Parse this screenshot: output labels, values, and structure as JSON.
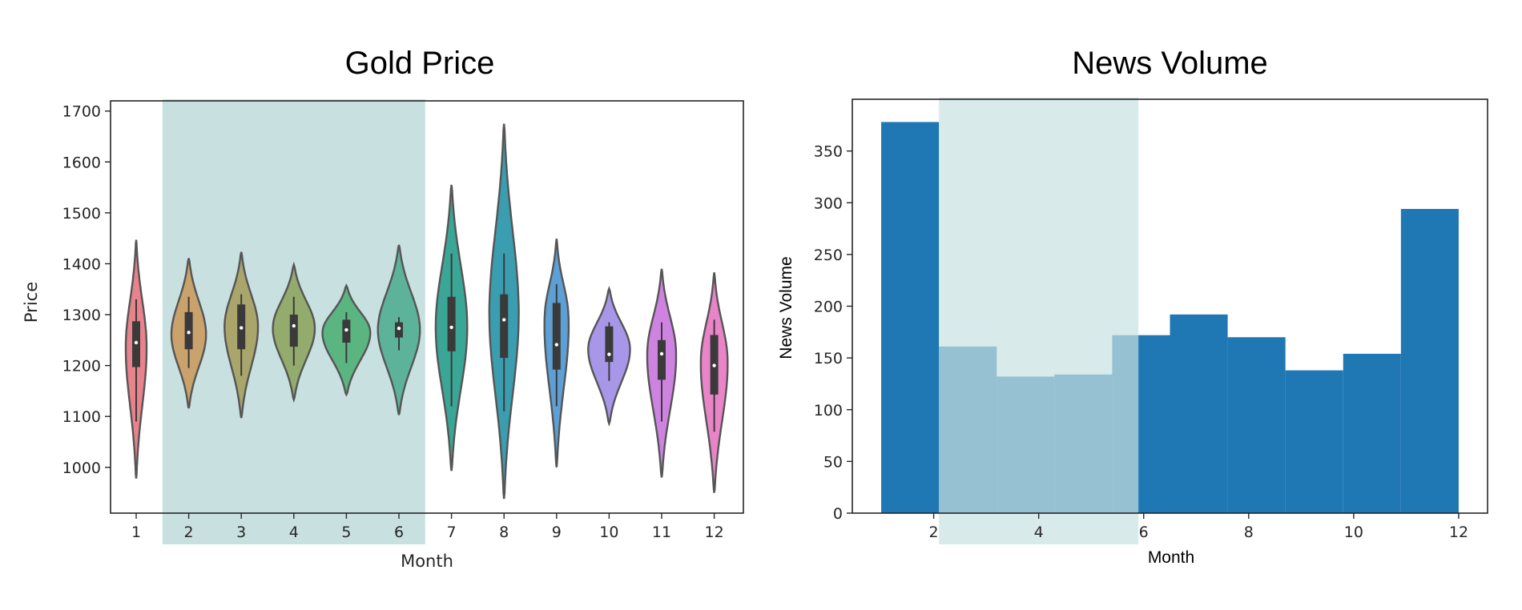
{
  "chart_data": [
    {
      "type": "violin",
      "title": "Gold Price",
      "xlabel": "Month",
      "ylabel": "Price",
      "x_categories": [
        "1",
        "2",
        "3",
        "4",
        "5",
        "6",
        "7",
        "8",
        "9",
        "10",
        "11",
        "12"
      ],
      "y_ticks": [
        1000,
        1100,
        1200,
        1300,
        1400,
        1500,
        1600,
        1700
      ],
      "ylim": [
        910,
        1720
      ],
      "highlight": {
        "from_category": "2",
        "to_category": "6",
        "color": "#c8e1e0"
      },
      "series": [
        {
          "month": "1",
          "color": "#e8828c",
          "min": 978,
          "max": 1447,
          "q1": 1197,
          "median": 1245,
          "q3": 1287,
          "whisker_low": 1090,
          "whisker_high": 1330,
          "mode": 1240,
          "max_width": 0.2
        },
        {
          "month": "2",
          "color": "#c9a26c",
          "min": 1116,
          "max": 1411,
          "q1": 1232,
          "median": 1265,
          "q3": 1305,
          "whisker_low": 1195,
          "whisker_high": 1335,
          "mode": 1260,
          "max_width": 0.33
        },
        {
          "month": "3",
          "color": "#a9a56b",
          "min": 1097,
          "max": 1423,
          "q1": 1232,
          "median": 1274,
          "q3": 1320,
          "whisker_low": 1180,
          "whisker_high": 1340,
          "mode": 1280,
          "max_width": 0.32
        },
        {
          "month": "4",
          "color": "#93ab6c",
          "min": 1133,
          "max": 1398,
          "q1": 1237,
          "median": 1278,
          "q3": 1300,
          "whisker_low": 1200,
          "whisker_high": 1335,
          "mode": 1275,
          "max_width": 0.4
        },
        {
          "month": "5",
          "color": "#5bb581",
          "min": 1143,
          "max": 1357,
          "q1": 1245,
          "median": 1270,
          "q3": 1290,
          "whisker_low": 1205,
          "whisker_high": 1305,
          "mode": 1268,
          "max_width": 0.46
        },
        {
          "month": "6",
          "color": "#5cb39a",
          "min": 1103,
          "max": 1437,
          "q1": 1255,
          "median": 1273,
          "q3": 1285,
          "whisker_low": 1230,
          "whisker_high": 1295,
          "mode": 1270,
          "max_width": 0.4
        },
        {
          "month": "7",
          "color": "#3aa695",
          "min": 993,
          "max": 1555,
          "q1": 1228,
          "median": 1275,
          "q3": 1335,
          "whisker_low": 1120,
          "whisker_high": 1420,
          "mode": 1275,
          "max_width": 0.3
        },
        {
          "month": "8",
          "color": "#3a9db0",
          "min": 938,
          "max": 1675,
          "q1": 1215,
          "median": 1290,
          "q3": 1340,
          "whisker_low": 1110,
          "whisker_high": 1420,
          "mode": 1300,
          "max_width": 0.28
        },
        {
          "month": "9",
          "color": "#5ca0d6",
          "min": 1000,
          "max": 1449,
          "q1": 1192,
          "median": 1241,
          "q3": 1323,
          "whisker_low": 1120,
          "whisker_high": 1360,
          "mode": 1300,
          "max_width": 0.24
        },
        {
          "month": "10",
          "color": "#a897e8",
          "min": 1086,
          "max": 1351,
          "q1": 1207,
          "median": 1222,
          "q3": 1277,
          "whisker_low": 1170,
          "whisker_high": 1285,
          "mode": 1235,
          "max_width": 0.4
        },
        {
          "month": "11",
          "color": "#cf83e1",
          "min": 980,
          "max": 1390,
          "q1": 1172,
          "median": 1223,
          "q3": 1250,
          "whisker_low": 1090,
          "whisker_high": 1285,
          "mode": 1230,
          "max_width": 0.28
        },
        {
          "month": "12",
          "color": "#ea84c8",
          "min": 950,
          "max": 1383,
          "q1": 1143,
          "median": 1200,
          "q3": 1260,
          "whisker_low": 1070,
          "whisker_high": 1290,
          "mode": 1215,
          "max_width": 0.26
        }
      ]
    },
    {
      "type": "bar",
      "title": "News Volume",
      "xlabel": "Month",
      "ylabel": "News Volume",
      "x_ticks": [
        2,
        4,
        6,
        8,
        10,
        12
      ],
      "y_ticks": [
        0,
        50,
        100,
        150,
        200,
        250,
        300,
        350
      ],
      "xlim": [
        0.45,
        12.55
      ],
      "ylim": [
        0,
        400
      ],
      "bar_color": "#1f77b4",
      "highlight": {
        "from": 2.1,
        "to": 5.9,
        "color": "#c8e1e0"
      },
      "bins": [
        {
          "from": 1.0,
          "to": 2.1,
          "value": 378
        },
        {
          "from": 2.1,
          "to": 3.2,
          "value": 161
        },
        {
          "from": 3.2,
          "to": 4.3,
          "value": 132
        },
        {
          "from": 4.3,
          "to": 5.4,
          "value": 134
        },
        {
          "from": 5.4,
          "to": 6.5,
          "value": 172
        },
        {
          "from": 6.5,
          "to": 7.6,
          "value": 192
        },
        {
          "from": 7.6,
          "to": 8.7,
          "value": 170
        },
        {
          "from": 8.7,
          "to": 9.8,
          "value": 138
        },
        {
          "from": 9.8,
          "to": 10.9,
          "value": 154
        },
        {
          "from": 10.9,
          "to": 12.0,
          "value": 294
        }
      ]
    }
  ]
}
